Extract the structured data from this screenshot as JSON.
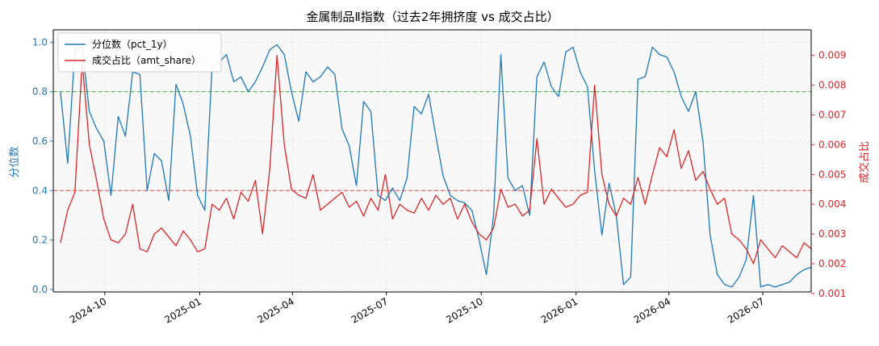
{
  "chart_data": {
    "type": "line",
    "title": "金属制品Ⅱ指数（过去2年拥挤度 vs 成交占比）",
    "ylabel_left": "分位数",
    "ylabel_right": "成交占比",
    "x_range": [
      "2024-08-12",
      "2026-08-17"
    ],
    "ylim_left": [
      -0.01,
      1.05
    ],
    "ylim_right": [
      0.00105,
      0.00986
    ],
    "x_ticks": [
      "2024-10-01",
      "2025-01-01",
      "2025-04-01",
      "2025-07-01",
      "2025-10-01",
      "2026-01-01",
      "2026-04-01",
      "2026-07-01"
    ],
    "x_tick_labels": [
      "2024-10",
      "2025-01",
      "2025-04",
      "2025-07",
      "2025-10",
      "2026-01",
      "2026-04",
      "2026-07"
    ],
    "y_ticks_left": [
      0.0,
      0.2,
      0.4,
      0.6,
      0.8,
      1.0
    ],
    "y_tick_labels_left": [
      "0.0",
      "0.2",
      "0.4",
      "0.6",
      "0.8",
      "1.0"
    ],
    "y_ticks_right": [
      0.001,
      0.002,
      0.003,
      0.004,
      0.005,
      0.006,
      0.007,
      0.008,
      0.009
    ],
    "y_tick_labels_right": [
      "0.001",
      "0.002",
      "0.003",
      "0.004",
      "0.005",
      "0.006",
      "0.007",
      "0.008",
      "0.009"
    ],
    "reference_lines": [
      {
        "axis": "left",
        "value": 0.8,
        "color": "#2ca02c",
        "style": "dashed"
      },
      {
        "axis": "left",
        "value": 0.4,
        "color": "#d62728",
        "style": "dashed"
      }
    ],
    "grid": true,
    "legend_position": "top-left",
    "series": [
      {
        "name": "分位数（pct_1y）",
        "axis": "left",
        "color": "#1f77b4",
        "x": [
          "2024-08-19",
          "2024-08-26",
          "2024-09-02",
          "2024-09-09",
          "2024-09-16",
          "2024-09-23",
          "2024-09-30",
          "2024-10-07",
          "2024-10-14",
          "2024-10-21",
          "2024-10-28",
          "2024-11-04",
          "2024-11-11",
          "2024-11-18",
          "2024-11-25",
          "2024-12-02",
          "2024-12-09",
          "2024-12-16",
          "2024-12-23",
          "2024-12-30",
          "2025-01-06",
          "2025-01-13",
          "2025-01-20",
          "2025-01-27",
          "2025-02-03",
          "2025-02-10",
          "2025-02-17",
          "2025-02-24",
          "2025-03-03",
          "2025-03-10",
          "2025-03-17",
          "2025-03-24",
          "2025-03-31",
          "2025-04-07",
          "2025-04-14",
          "2025-04-21",
          "2025-04-28",
          "2025-05-05",
          "2025-05-12",
          "2025-05-19",
          "2025-05-26",
          "2025-06-02",
          "2025-06-09",
          "2025-06-16",
          "2025-06-23",
          "2025-06-30",
          "2025-07-07",
          "2025-07-14",
          "2025-07-21",
          "2025-07-28",
          "2025-08-04",
          "2025-08-11",
          "2025-08-18",
          "2025-08-25",
          "2025-09-01",
          "2025-09-08",
          "2025-09-15",
          "2025-09-22",
          "2025-09-29",
          "2025-10-06",
          "2025-10-13",
          "2025-10-20",
          "2025-10-27",
          "2025-11-03",
          "2025-11-10",
          "2025-11-17",
          "2025-11-24",
          "2025-12-01",
          "2025-12-08",
          "2025-12-15",
          "2025-12-22",
          "2025-12-29",
          "2026-01-05",
          "2026-01-12",
          "2026-01-19",
          "2026-01-26",
          "2026-02-02",
          "2026-02-09",
          "2026-02-16",
          "2026-02-23",
          "2026-03-02",
          "2026-03-09",
          "2026-03-16",
          "2026-03-23",
          "2026-03-30",
          "2026-04-06",
          "2026-04-13",
          "2026-04-20",
          "2026-04-27",
          "2026-05-04",
          "2026-05-11",
          "2026-05-18",
          "2026-05-25",
          "2026-06-01",
          "2026-06-08",
          "2026-06-15",
          "2026-06-22",
          "2026-06-29",
          "2026-07-06",
          "2026-07-13",
          "2026-07-20",
          "2026-07-27",
          "2026-08-03",
          "2026-08-10",
          "2026-08-17"
        ],
        "values": [
          0.8,
          0.51,
          0.97,
          0.98,
          0.72,
          0.65,
          0.6,
          0.38,
          0.7,
          0.62,
          0.88,
          0.87,
          0.4,
          0.55,
          0.52,
          0.36,
          0.83,
          0.75,
          0.62,
          0.38,
          0.32,
          0.9,
          0.92,
          0.95,
          0.84,
          0.86,
          0.8,
          0.84,
          0.9,
          0.97,
          0.99,
          0.95,
          0.8,
          0.68,
          0.88,
          0.84,
          0.86,
          0.9,
          0.87,
          0.65,
          0.58,
          0.42,
          0.76,
          0.72,
          0.38,
          0.36,
          0.41,
          0.36,
          0.45,
          0.74,
          0.71,
          0.79,
          0.62,
          0.46,
          0.38,
          0.36,
          0.35,
          0.32,
          0.2,
          0.06,
          0.3,
          0.95,
          0.45,
          0.4,
          0.42,
          0.3,
          0.86,
          0.92,
          0.82,
          0.78,
          0.96,
          0.98,
          0.88,
          0.82,
          0.48,
          0.22,
          0.43,
          0.3,
          0.02,
          0.05,
          0.85,
          0.86,
          0.98,
          0.95,
          0.94,
          0.88,
          0.78,
          0.72,
          0.8,
          0.6,
          0.22,
          0.06,
          0.02,
          0.01,
          0.05,
          0.12,
          0.38,
          0.01,
          0.02,
          0.01,
          0.02,
          0.03,
          0.06,
          0.08,
          0.09
        ]
      },
      {
        "name": "成交占比（amt_share）",
        "axis": "right",
        "color": "#d62728",
        "x": [
          "2024-08-19",
          "2024-08-26",
          "2024-09-02",
          "2024-09-09",
          "2024-09-16",
          "2024-09-23",
          "2024-09-30",
          "2024-10-07",
          "2024-10-14",
          "2024-10-21",
          "2024-10-28",
          "2024-11-04",
          "2024-11-11",
          "2024-11-18",
          "2024-11-25",
          "2024-12-02",
          "2024-12-09",
          "2024-12-16",
          "2024-12-23",
          "2024-12-30",
          "2025-01-06",
          "2025-01-13",
          "2025-01-20",
          "2025-01-27",
          "2025-02-03",
          "2025-02-10",
          "2025-02-17",
          "2025-02-24",
          "2025-03-03",
          "2025-03-10",
          "2025-03-17",
          "2025-03-24",
          "2025-03-31",
          "2025-04-07",
          "2025-04-14",
          "2025-04-21",
          "2025-04-28",
          "2025-05-05",
          "2025-05-12",
          "2025-05-19",
          "2025-05-26",
          "2025-06-02",
          "2025-06-09",
          "2025-06-16",
          "2025-06-23",
          "2025-06-30",
          "2025-07-07",
          "2025-07-14",
          "2025-07-21",
          "2025-07-28",
          "2025-08-04",
          "2025-08-11",
          "2025-08-18",
          "2025-08-25",
          "2025-09-01",
          "2025-09-08",
          "2025-09-15",
          "2025-09-22",
          "2025-09-29",
          "2025-10-06",
          "2025-10-13",
          "2025-10-20",
          "2025-10-27",
          "2025-11-03",
          "2025-11-10",
          "2025-11-17",
          "2025-11-24",
          "2025-12-01",
          "2025-12-08",
          "2025-12-15",
          "2025-12-22",
          "2025-12-29",
          "2026-01-05",
          "2026-01-12",
          "2026-01-19",
          "2026-01-26",
          "2026-02-02",
          "2026-02-09",
          "2026-02-16",
          "2026-02-23",
          "2026-03-02",
          "2026-03-09",
          "2026-03-16",
          "2026-03-23",
          "2026-03-30",
          "2026-04-06",
          "2026-04-13",
          "2026-04-20",
          "2026-04-27",
          "2026-05-04",
          "2026-05-11",
          "2026-05-18",
          "2026-05-25",
          "2026-06-01",
          "2026-06-08",
          "2026-06-15",
          "2026-06-22",
          "2026-06-29",
          "2026-07-06",
          "2026-07-13",
          "2026-07-20",
          "2026-07-27",
          "2026-08-03",
          "2026-08-10",
          "2026-08-17"
        ],
        "values": [
          0.0027,
          0.0038,
          0.0044,
          0.0088,
          0.006,
          0.0048,
          0.0035,
          0.0028,
          0.0027,
          0.003,
          0.004,
          0.0025,
          0.0024,
          0.003,
          0.0032,
          0.0029,
          0.0026,
          0.0031,
          0.0028,
          0.0024,
          0.0025,
          0.004,
          0.0038,
          0.0042,
          0.0035,
          0.0044,
          0.0041,
          0.0048,
          0.003,
          0.0052,
          0.009,
          0.006,
          0.0045,
          0.0043,
          0.0042,
          0.005,
          0.0038,
          0.004,
          0.0042,
          0.0044,
          0.0039,
          0.0041,
          0.0036,
          0.0042,
          0.0038,
          0.005,
          0.0035,
          0.004,
          0.0038,
          0.0037,
          0.0042,
          0.0038,
          0.0043,
          0.004,
          0.0042,
          0.0035,
          0.004,
          0.0034,
          0.003,
          0.0028,
          0.0032,
          0.0045,
          0.0039,
          0.004,
          0.0036,
          0.0038,
          0.0062,
          0.004,
          0.0045,
          0.0042,
          0.0039,
          0.004,
          0.0043,
          0.0044,
          0.008,
          0.005,
          0.004,
          0.0036,
          0.0042,
          0.004,
          0.0049,
          0.004,
          0.005,
          0.0059,
          0.0056,
          0.0065,
          0.0052,
          0.0058,
          0.0048,
          0.0051,
          0.0045,
          0.004,
          0.0042,
          0.003,
          0.0028,
          0.0025,
          0.002,
          0.0028,
          0.0025,
          0.0022,
          0.0026,
          0.0024,
          0.0022,
          0.0027,
          0.0025
        ]
      }
    ]
  }
}
